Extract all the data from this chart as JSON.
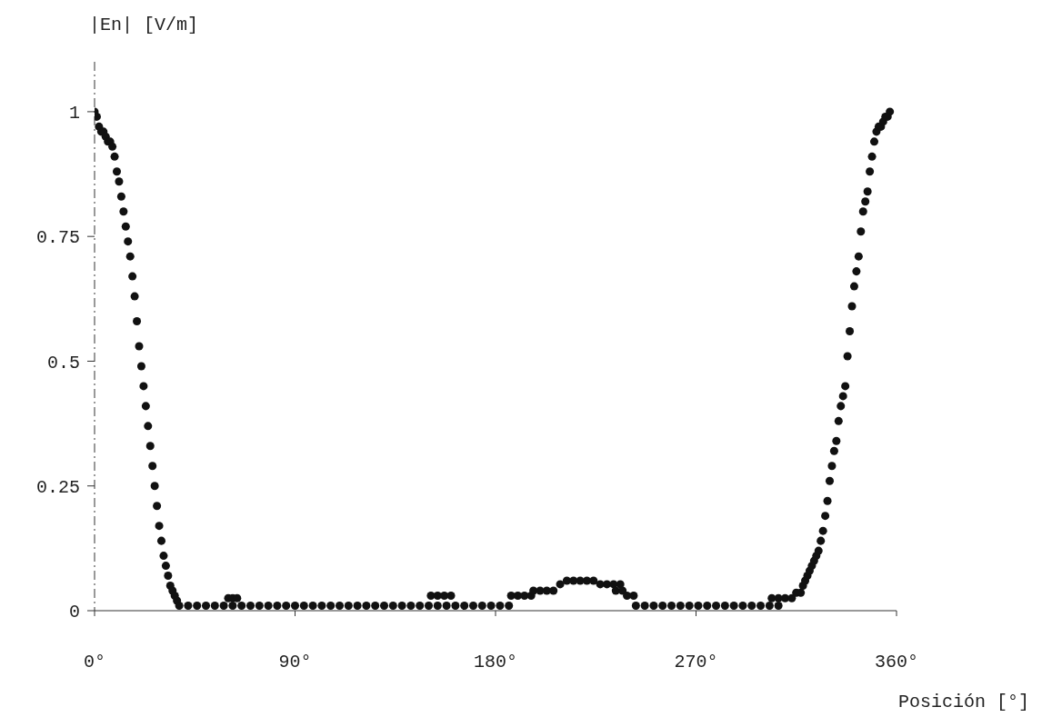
{
  "chart_data": {
    "type": "scatter",
    "xlabel": "Posición [°]",
    "ylabel": "|En| [V/m]",
    "x": [
      0,
      1,
      2,
      3,
      4,
      5,
      6,
      7,
      8,
      9,
      10,
      11,
      12,
      13,
      14,
      15,
      16,
      17,
      18,
      19,
      20,
      21,
      22,
      23,
      24,
      25,
      26,
      27,
      28,
      29,
      30,
      31,
      32,
      33,
      34,
      35,
      36,
      37,
      38,
      42,
      46,
      50,
      54,
      58,
      62,
      66,
      70,
      74,
      78,
      82,
      86,
      90,
      94,
      98,
      102,
      106,
      110,
      114,
      118,
      122,
      126,
      130,
      134,
      138,
      142,
      146,
      150,
      154,
      60,
      62,
      64,
      151,
      154,
      157,
      160,
      158,
      162,
      166,
      170,
      174,
      178,
      182,
      186,
      187,
      190,
      193,
      196,
      197,
      200,
      203,
      206,
      209,
      212,
      215,
      218,
      221,
      224,
      227,
      230,
      233,
      236,
      234,
      237,
      239,
      242,
      243,
      247,
      251,
      255,
      259,
      263,
      267,
      271,
      275,
      279,
      283,
      287,
      291,
      295,
      299,
      303,
      307,
      304,
      307,
      310,
      313,
      315,
      317,
      318,
      319,
      320,
      321,
      322,
      323,
      324,
      325,
      326,
      327,
      328,
      329,
      330,
      331,
      332,
      333,
      334,
      335,
      336,
      337,
      338,
      339,
      340,
      341,
      342,
      343,
      344,
      345,
      346,
      347,
      348,
      349,
      350,
      351,
      352,
      353,
      354,
      355,
      356,
      357
    ],
    "series": [
      {
        "color": "#111111",
        "values": [
          1.0,
          0.99,
          0.97,
          0.96,
          0.96,
          0.95,
          0.94,
          0.94,
          0.93,
          0.91,
          0.88,
          0.86,
          0.83,
          0.8,
          0.77,
          0.74,
          0.71,
          0.67,
          0.63,
          0.58,
          0.53,
          0.49,
          0.45,
          0.41,
          0.37,
          0.33,
          0.29,
          0.25,
          0.21,
          0.17,
          0.14,
          0.11,
          0.09,
          0.07,
          0.05,
          0.04,
          0.03,
          0.02,
          0.01,
          0.01,
          0.01,
          0.01,
          0.01,
          0.01,
          0.01,
          0.01,
          0.01,
          0.01,
          0.01,
          0.01,
          0.01,
          0.01,
          0.01,
          0.01,
          0.01,
          0.01,
          0.01,
          0.01,
          0.01,
          0.01,
          0.01,
          0.01,
          0.01,
          0.01,
          0.01,
          0.01,
          0.01,
          0.01,
          0.025,
          0.025,
          0.025,
          0.03,
          0.03,
          0.03,
          0.03,
          0.01,
          0.01,
          0.01,
          0.01,
          0.01,
          0.01,
          0.01,
          0.01,
          0.03,
          0.03,
          0.03,
          0.03,
          0.04,
          0.04,
          0.04,
          0.04,
          0.053,
          0.06,
          0.06,
          0.06,
          0.06,
          0.06,
          0.053,
          0.053,
          0.053,
          0.053,
          0.04,
          0.04,
          0.03,
          0.03,
          0.01,
          0.01,
          0.01,
          0.01,
          0.01,
          0.01,
          0.01,
          0.01,
          0.01,
          0.01,
          0.01,
          0.01,
          0.01,
          0.01,
          0.01,
          0.01,
          0.01,
          0.025,
          0.025,
          0.025,
          0.025,
          0.036,
          0.036,
          0.05,
          0.06,
          0.07,
          0.08,
          0.09,
          0.1,
          0.11,
          0.12,
          0.14,
          0.16,
          0.19,
          0.22,
          0.26,
          0.29,
          0.32,
          0.34,
          0.38,
          0.41,
          0.43,
          0.45,
          0.51,
          0.56,
          0.61,
          0.65,
          0.68,
          0.71,
          0.76,
          0.8,
          0.82,
          0.84,
          0.88,
          0.91,
          0.94,
          0.96,
          0.97,
          0.97,
          0.98,
          0.99,
          0.99,
          1.0
        ]
      }
    ],
    "xlim": [
      0,
      360
    ],
    "xticks": [
      {
        "value": 0,
        "label": "0°"
      },
      {
        "value": 90,
        "label": "90°"
      },
      {
        "value": 180,
        "label": "180°"
      },
      {
        "value": 270,
        "label": "270°"
      },
      {
        "value": 360,
        "label": "360°"
      }
    ],
    "ylim": [
      0,
      1.1
    ],
    "yticks": [
      0,
      0.25,
      0.5,
      0.75,
      1
    ],
    "marker": "circle",
    "grid": false
  }
}
